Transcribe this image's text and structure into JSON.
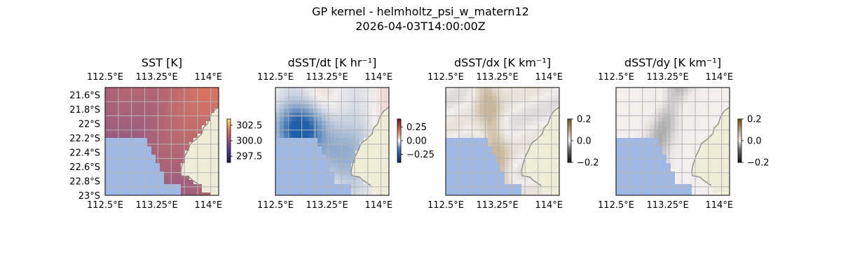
{
  "figure": {
    "title_line1": "GP kernel - helmholtz_psi_w_matern12",
    "title_line2": "2026-04-03T14:00:00Z"
  },
  "colors": {
    "land": "#efedd8",
    "ocean_mask": "#9fb9e4",
    "coast": "#8c8c8c",
    "grid": "#b4b4b4",
    "sst_low": "#7a4f8e",
    "sst_high": "#e57a5c",
    "ddt_neg": "#1f5ea8",
    "ddt_pos": "#c0392b",
    "grad_light": "#f3efee",
    "grad_tan": "#c8b79a",
    "grad_dark": "#303030"
  },
  "chart_data": [
    {
      "type": "heatmap",
      "title": "SST [K]",
      "x_ticks": [
        "112.5°E",
        "113.25°E",
        "114°E"
      ],
      "y_ticks": [
        "21.6°S",
        "21.8°S",
        "22°S",
        "22.2°S",
        "22.4°S",
        "22.6°S",
        "22.8°S",
        "23°S"
      ],
      "y_tick_values": [
        -21.6,
        -21.8,
        -22.0,
        -22.2,
        -22.4,
        -22.6,
        -22.8,
        -23.0
      ],
      "xlim": [
        112.5,
        114.15
      ],
      "ylim": [
        -23.0,
        -21.5
      ],
      "colorbar": {
        "ticks": [
          "297.5",
          "300.0",
          "302.5"
        ],
        "tick_values": [
          297.5,
          300.0,
          302.5
        ],
        "range": [
          296.5,
          303.5
        ],
        "colormap": "thermal"
      },
      "field": "sst"
    },
    {
      "type": "heatmap",
      "title": "dSST/dt [K hr⁻¹]",
      "x_ticks": [
        "112.5°E",
        "113.25°E",
        "114°E"
      ],
      "y_ticks": [],
      "xlim": [
        112.5,
        114.15
      ],
      "ylim": [
        -23.0,
        -21.5
      ],
      "colorbar": {
        "ticks": [
          "0.25",
          "0.00",
          "−0.25"
        ],
        "tick_values": [
          0.25,
          0.0,
          -0.25
        ],
        "range": [
          -0.4,
          0.4
        ],
        "colormap": "balance"
      },
      "field": "ddt"
    },
    {
      "type": "heatmap",
      "title": "dSST/dx [K km⁻¹]",
      "x_ticks": [
        "112.5°E",
        "113.25°E",
        "114°E"
      ],
      "y_ticks": [],
      "xlim": [
        112.5,
        114.15
      ],
      "ylim": [
        -23.0,
        -21.5
      ],
      "colorbar": {
        "ticks": [
          "0.2",
          "0.0",
          "−0.2"
        ],
        "tick_values": [
          0.2,
          0.0,
          -0.2
        ],
        "range": [
          -0.2,
          0.2
        ],
        "colormap": "diff"
      },
      "field": "ddx"
    },
    {
      "type": "heatmap",
      "title": "dSST/dy [K km⁻¹]",
      "x_ticks": [
        "112.5°E",
        "113.25°E",
        "114°E"
      ],
      "y_ticks": [],
      "xlim": [
        112.5,
        114.15
      ],
      "ylim": [
        -23.0,
        -21.5
      ],
      "colorbar": {
        "ticks": [
          "0.2",
          "0.0",
          "−0.2"
        ],
        "tick_values": [
          0.2,
          0.0,
          -0.2
        ],
        "range": [
          -0.2,
          0.2
        ],
        "colormap": "diff"
      },
      "field": "ddy"
    }
  ]
}
